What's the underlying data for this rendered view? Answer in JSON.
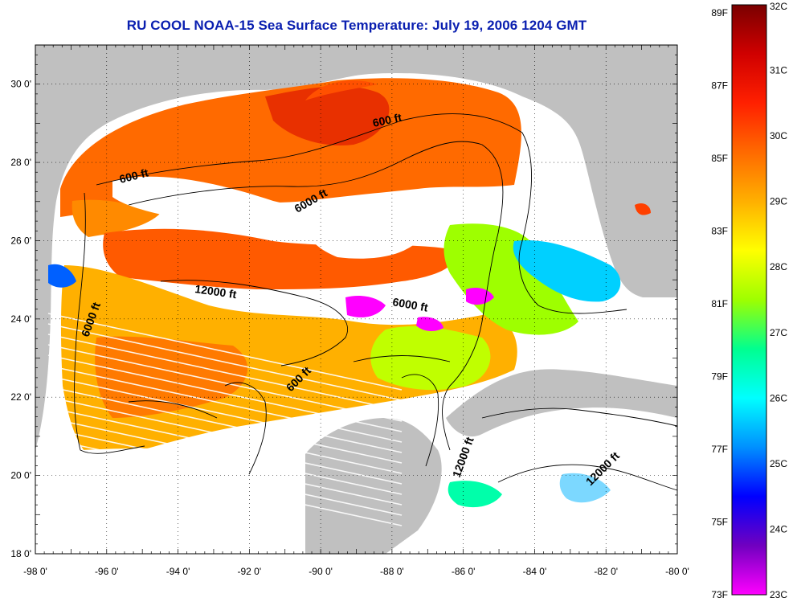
{
  "title": "RU COOL  NOAA-15  Sea Surface Temperature:  July 19, 2006 1204 GMT",
  "map": {
    "lon_ticks": [
      "-98 0'",
      "-96 0'",
      "-94 0'",
      "-92 0'",
      "-90 0'",
      "-88 0'",
      "-86 0'",
      "-84 0'",
      "-82 0'",
      "-80 0'"
    ],
    "lat_ticks": [
      "30 0'",
      "28 0'",
      "26 0'",
      "24 0'",
      "22 0'",
      "20 0'",
      "18 0'"
    ],
    "lon_range": [
      -98,
      -80
    ],
    "lat_range": [
      18,
      31
    ],
    "contour_labels": [
      "600 ft",
      "600 ft",
      "6000 ft",
      "12000 ft",
      "6000 ft",
      "6000 ft",
      "600 ft",
      "12000 ft",
      "12000 ft"
    ],
    "colors": {
      "land": "#c0c0c0",
      "cloud": "#ffffff",
      "title": "#0a1fb0"
    }
  },
  "colorbar": {
    "fahrenheit": [
      "89F",
      "87F",
      "85F",
      "83F",
      "81F",
      "79F",
      "77F",
      "75F",
      "73F"
    ],
    "celsius": [
      "32C",
      "31C",
      "30C",
      "29C",
      "28C",
      "27C",
      "26C",
      "25C",
      "24C",
      "23C"
    ],
    "stops": [
      "#7a0000",
      "#d00000",
      "#ff2000",
      "#ff6a00",
      "#ffb000",
      "#ffff00",
      "#9eff00",
      "#00ff90",
      "#00ffff",
      "#0090ff",
      "#0000ff",
      "#7000c0",
      "#ff00ff"
    ]
  }
}
